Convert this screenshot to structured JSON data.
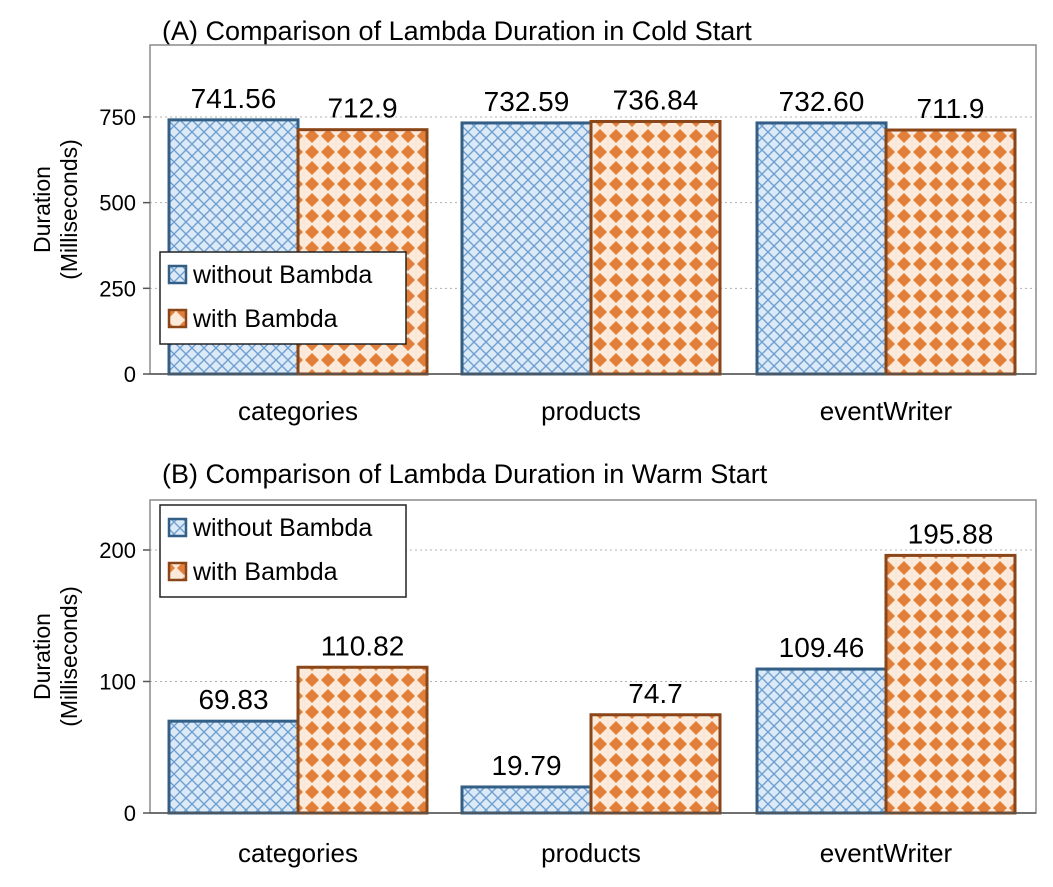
{
  "chart_data": [
    {
      "type": "bar",
      "title": "(A) Comparison of Lambda Duration in Cold Start",
      "ylabel": [
        "Duration",
        "(Milliseconds)"
      ],
      "categories": [
        "categories",
        "products",
        "eventWriter"
      ],
      "ylim": [
        0,
        750
      ],
      "ymax": 960,
      "yticks": [
        0,
        250,
        500,
        750
      ],
      "grid": true,
      "legend_position": "middle-left",
      "series": [
        {
          "name": "without Bambda",
          "values": [
            741.56,
            732.59,
            732.6
          ],
          "labels": [
            "741.56",
            "732.59",
            "732.60"
          ]
        },
        {
          "name": "with Bambda",
          "values": [
            712.9,
            736.84,
            711.9
          ],
          "labels": [
            "712.9",
            "736.84",
            "711.9"
          ]
        }
      ]
    },
    {
      "type": "bar",
      "title": "(B) Comparison of Lambda Duration in Warm Start",
      "ylabel": [
        "Duration",
        "(Milliseconds)"
      ],
      "categories": [
        "categories",
        "products",
        "eventWriter"
      ],
      "ylim": [
        0,
        200
      ],
      "ymax": 238,
      "yticks": [
        0,
        100,
        200
      ],
      "grid": true,
      "legend_position": "top-left",
      "series": [
        {
          "name": "without Bambda",
          "values": [
            69.83,
            19.79,
            109.46
          ],
          "labels": [
            "69.83",
            "19.79",
            "109.46"
          ]
        },
        {
          "name": "with Bambda",
          "values": [
            110.82,
            74.7,
            195.88
          ],
          "labels": [
            "110.82",
            "74.7",
            "195.88"
          ]
        }
      ]
    }
  ],
  "colors": {
    "without_fill": "#dce9f7",
    "without_pattern": "#6f9fd0",
    "without_border": "#335f86",
    "with_fill": "#fbe9da",
    "with_pattern": "#e2803b",
    "with_border": "#8a4618"
  }
}
